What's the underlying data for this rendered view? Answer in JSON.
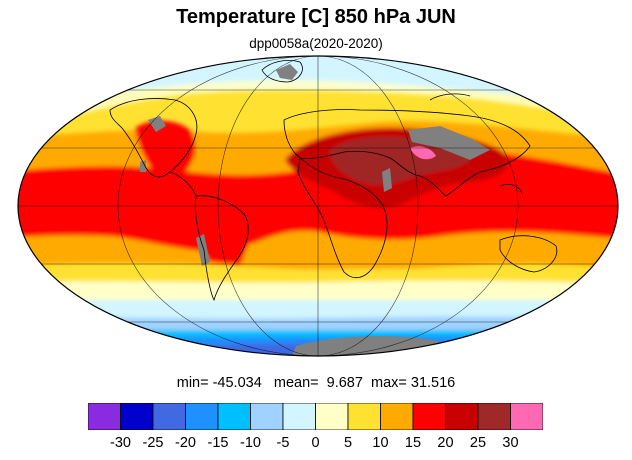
{
  "title": "Temperature [C] 850 hPa JUN",
  "subtitle": "dpp0058a(2020-2020)",
  "stats": {
    "text": "min= -45.034   mean=  9.687  max= 31.516",
    "min": -45.034,
    "mean": 9.687,
    "max": 31.516
  },
  "colorbar": {
    "colors": [
      "#8a2be2",
      "#0000cd",
      "#4169e1",
      "#1e90ff",
      "#00bfff",
      "#a0d2ff",
      "#d2f5ff",
      "#ffffc8",
      "#ffe132",
      "#ffaa00",
      "#ff0000",
      "#c80000",
      "#a02828",
      "#ff69b4"
    ],
    "labels": [
      "-30",
      "-25",
      "-20",
      "-15",
      "-10",
      "-5",
      "0",
      "5",
      "10",
      "15",
      "20",
      "25",
      "30"
    ]
  },
  "missing_color": "#808080"
}
